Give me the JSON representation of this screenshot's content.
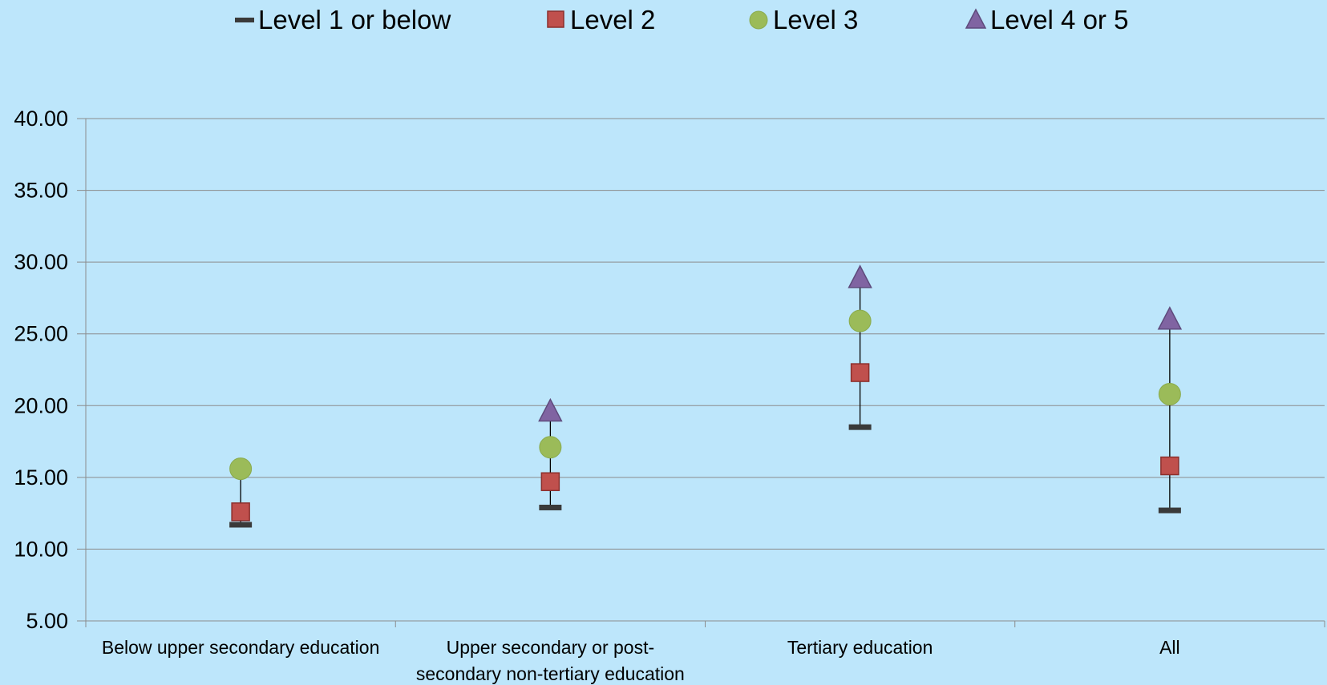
{
  "chart_data": {
    "type": "scatter",
    "title": "",
    "xlabel": "",
    "ylabel": "",
    "ylim": [
      5,
      40
    ],
    "yticks": [
      "5.00",
      "10.00",
      "15.00",
      "20.00",
      "25.00",
      "30.00",
      "35.00",
      "40.00"
    ],
    "grid": true,
    "legend_position": "top",
    "categories": [
      [
        "Below upper secondary education"
      ],
      [
        "Upper secondary or post-",
        "secondary non-tertiary education"
      ],
      [
        "Tertiary education"
      ],
      [
        "All"
      ]
    ],
    "series": [
      {
        "name": "Level 1 or below",
        "marker": "dash",
        "color": "#3a3a3a",
        "values": [
          11.7,
          12.9,
          18.5,
          12.7
        ]
      },
      {
        "name": "Level 2",
        "marker": "square",
        "color": "#c0504d",
        "values": [
          12.6,
          14.7,
          22.3,
          15.8
        ]
      },
      {
        "name": "Level 3",
        "marker": "circle",
        "color": "#9bbb59",
        "values": [
          15.6,
          17.1,
          25.9,
          20.8
        ]
      },
      {
        "name": "Level 4 or 5",
        "marker": "triangle",
        "color": "#8064a2",
        "values": [
          null,
          19.6,
          28.9,
          26.0
        ]
      }
    ],
    "colors": {
      "background": "#bde6fb",
      "grid": "#8c8c8c",
      "range_line": "#000000"
    }
  }
}
